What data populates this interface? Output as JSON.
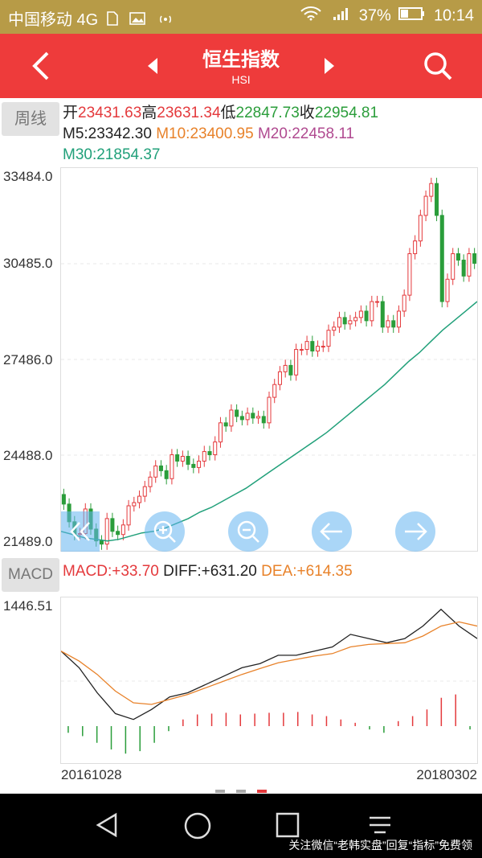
{
  "status_bar": {
    "carrier": "中国移动 4G",
    "battery": "37%",
    "time": "10:14"
  },
  "header": {
    "title": "恒生指数",
    "subtitle": "HSI"
  },
  "quote": {
    "period": "周线",
    "open_label": "开",
    "open": "23431.63",
    "high_label": "高",
    "high": "23631.34",
    "low_label": "低",
    "low": "22847.73",
    "close_label": "收",
    "close": "22954.81",
    "m5": "M5:23342.30",
    "m10": "M10:23400.95",
    "m20": "M20:22458.11",
    "m30": "M30:21854.37"
  },
  "y_axis": [
    "33484.0",
    "30485.0",
    "27486.0",
    "24488.0",
    "21489.0"
  ],
  "macd": {
    "button": "MACD",
    "macd": "MACD:+33.70",
    "diff": "DIFF:+631.20",
    "dea": "DEA:+614.35",
    "top_value": "1446.51"
  },
  "dates": {
    "start": "20161028",
    "end": "20180302"
  },
  "footer_note": "关注微信“老韩实盘”回复“指标”免费领",
  "colors": {
    "up": "#e4393c",
    "down": "#2a9d3a",
    "ma5": "#222222",
    "ma10": "#e8822a",
    "ma20": "#b04a90",
    "ma30": "#21a07a"
  },
  "chart_data": {
    "type": "candlestick",
    "ylim": [
      21489.0,
      33484.0
    ],
    "x_range": [
      "20161028",
      "20180302"
    ],
    "close": [
      22954,
      22400,
      22000,
      22030,
      22800,
      22170,
      21800,
      21700,
      22500,
      22100,
      22000,
      22300,
      22900,
      23000,
      23200,
      23500,
      23800,
      24150,
      24000,
      23750,
      24500,
      24300,
      24450,
      24200,
      24100,
      24300,
      24600,
      24500,
      24900,
      25500,
      25400,
      25900,
      25700,
      25600,
      25800,
      25650,
      25700,
      25500,
      26300,
      26700,
      27100,
      27300,
      27000,
      27800,
      27800,
      28050,
      27750,
      27900,
      27900,
      28400,
      28500,
      28800,
      28600,
      28700,
      28800,
      29000,
      28700,
      29300,
      29300,
      28500,
      28700,
      28500,
      29000,
      29500,
      30800,
      31200,
      32000,
      32600,
      33000,
      32000,
      29300,
      30000,
      30800,
      30600,
      30100,
      30800,
      30500
    ],
    "ma30_approx": [
      22100,
      22000,
      21900,
      21850,
      21800,
      21850,
      21950,
      22050,
      22100,
      22200,
      22350,
      22500,
      22700,
      22850,
      23050,
      23250,
      23450,
      23700,
      23950,
      24200,
      24450,
      24700,
      24950,
      25200,
      25500,
      25800,
      26100,
      26400,
      26700,
      27050,
      27400,
      27700,
      28050,
      28400,
      28700,
      29000,
      29300
    ],
    "macd": {
      "diff": [
        900,
        700,
        400,
        150,
        80,
        200,
        350,
        400,
        500,
        600,
        700,
        750,
        850,
        850,
        900,
        950,
        1100,
        1050,
        1000,
        1050,
        1200,
        1400,
        1200,
        1050
      ],
      "dea": [
        900,
        780,
        620,
        420,
        280,
        260,
        320,
        380,
        460,
        540,
        620,
        690,
        760,
        800,
        840,
        870,
        950,
        980,
        990,
        1000,
        1080,
        1200,
        1250,
        1200
      ],
      "histogram": [
        -80,
        -120,
        -200,
        -280,
        -330,
        -300,
        -200,
        -60,
        80,
        140,
        150,
        160,
        140,
        150,
        160,
        160,
        170,
        140,
        120,
        80,
        40,
        -40,
        -80,
        60,
        120,
        200,
        340,
        380,
        -40
      ]
    }
  }
}
